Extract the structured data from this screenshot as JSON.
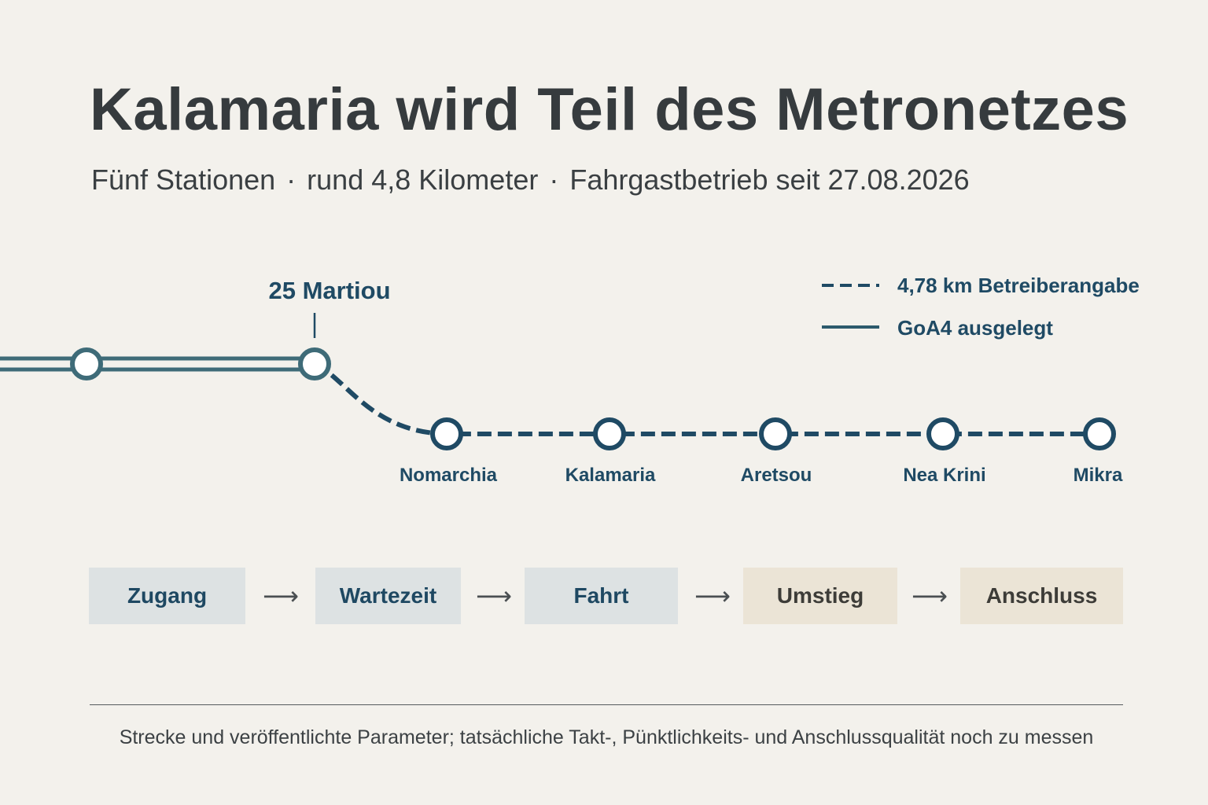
{
  "title": "Kalamaria wird Teil des Metronetzes",
  "subtitle": {
    "part1": "Fünf Stationen",
    "part2": "rund 4,8 Kilometer",
    "part3": "Fahrgastbetrieb seit 27.08.2026",
    "separator": "·"
  },
  "map": {
    "junction_station": "25 Martiou",
    "stations": [
      "Nomarchia",
      "Kalamaria",
      "Aretsou",
      "Nea Krini",
      "Mikra"
    ],
    "legend": [
      {
        "style": "dashed",
        "label": "4,78 km Betreiberangabe"
      },
      {
        "style": "solid",
        "label": "GoA4 ausgelegt"
      }
    ],
    "colors": {
      "existing_line": "#3e6b78",
      "new_line": "#1f4a64",
      "station_fill": "#ffffff",
      "text": "#1f4a64"
    }
  },
  "flow": {
    "steps": [
      {
        "label": "Zugang",
        "tone": "blue"
      },
      {
        "label": "Wartezeit",
        "tone": "blue"
      },
      {
        "label": "Fahrt",
        "tone": "blue"
      },
      {
        "label": "Umstieg",
        "tone": "beige"
      },
      {
        "label": "Anschluss",
        "tone": "beige"
      }
    ],
    "arrow": "⟶",
    "colors": {
      "blue": "#dde2e3",
      "beige": "#ebe4d6"
    }
  },
  "footnote": "Strecke und veröffentlichte Parameter; tatsächliche Takt-, Pünktlichkeits- und Anschlussqualität noch zu messen"
}
